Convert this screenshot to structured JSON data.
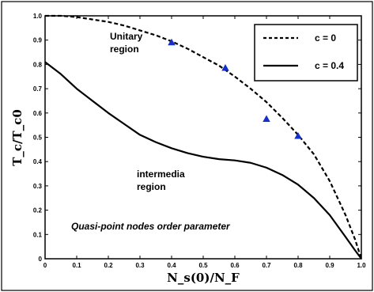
{
  "chart_data": {
    "type": "line",
    "xlabel": "N_s(0)/N_F",
    "ylabel": "T_c/T_c0",
    "xlim": [
      0,
      1
    ],
    "ylim": [
      0,
      1
    ],
    "x_ticks": [
      "0",
      "0.1",
      "0.2",
      "0.3",
      "0.4",
      "0.5",
      "0.6",
      "0.7",
      "0.8",
      "0.9",
      "1.0"
    ],
    "y_ticks": [
      "0",
      "0.1",
      "0.2",
      "0.3",
      "0.4",
      "0.5",
      "0.6",
      "0.7",
      "0.8",
      "0.9",
      "1.0"
    ],
    "grid": false,
    "legend_position": "top-right",
    "series": [
      {
        "name": "c = 0",
        "style": "dashed",
        "color": "#000000",
        "x": [
          0,
          0.05,
          0.1,
          0.15,
          0.2,
          0.25,
          0.3,
          0.35,
          0.4,
          0.45,
          0.5,
          0.55,
          0.6,
          0.65,
          0.7,
          0.75,
          0.8,
          0.85,
          0.9,
          0.95,
          0.98,
          1.0
        ],
        "y": [
          1.0,
          1.0,
          0.995,
          0.985,
          0.975,
          0.96,
          0.94,
          0.92,
          0.895,
          0.865,
          0.83,
          0.795,
          0.75,
          0.7,
          0.645,
          0.58,
          0.51,
          0.43,
          0.32,
          0.18,
          0.08,
          0.0
        ]
      },
      {
        "name": "c = 0.4",
        "style": "solid",
        "color": "#000000",
        "x": [
          0,
          0.05,
          0.1,
          0.15,
          0.2,
          0.25,
          0.3,
          0.35,
          0.4,
          0.45,
          0.5,
          0.55,
          0.6,
          0.65,
          0.7,
          0.75,
          0.8,
          0.85,
          0.9,
          0.95,
          0.98,
          1.0
        ],
        "y": [
          0.81,
          0.76,
          0.7,
          0.65,
          0.6,
          0.555,
          0.51,
          0.48,
          0.455,
          0.435,
          0.42,
          0.41,
          0.405,
          0.395,
          0.375,
          0.345,
          0.305,
          0.25,
          0.18,
          0.09,
          0.035,
          0.0
        ]
      },
      {
        "name": "",
        "style": "markers",
        "marker": "triangle",
        "color": "#1530c8",
        "x": [
          0.4,
          0.57,
          0.7,
          0.8
        ],
        "y": [
          0.89,
          0.785,
          0.575,
          0.505
        ]
      }
    ],
    "legend": [
      "c = 0",
      "c = 0.4"
    ],
    "annotations": {
      "unitary": [
        "Unitary",
        "region"
      ],
      "intermedia": [
        "intermedia",
        "region"
      ],
      "caption": "Quasi-point nodes order parameter"
    }
  }
}
